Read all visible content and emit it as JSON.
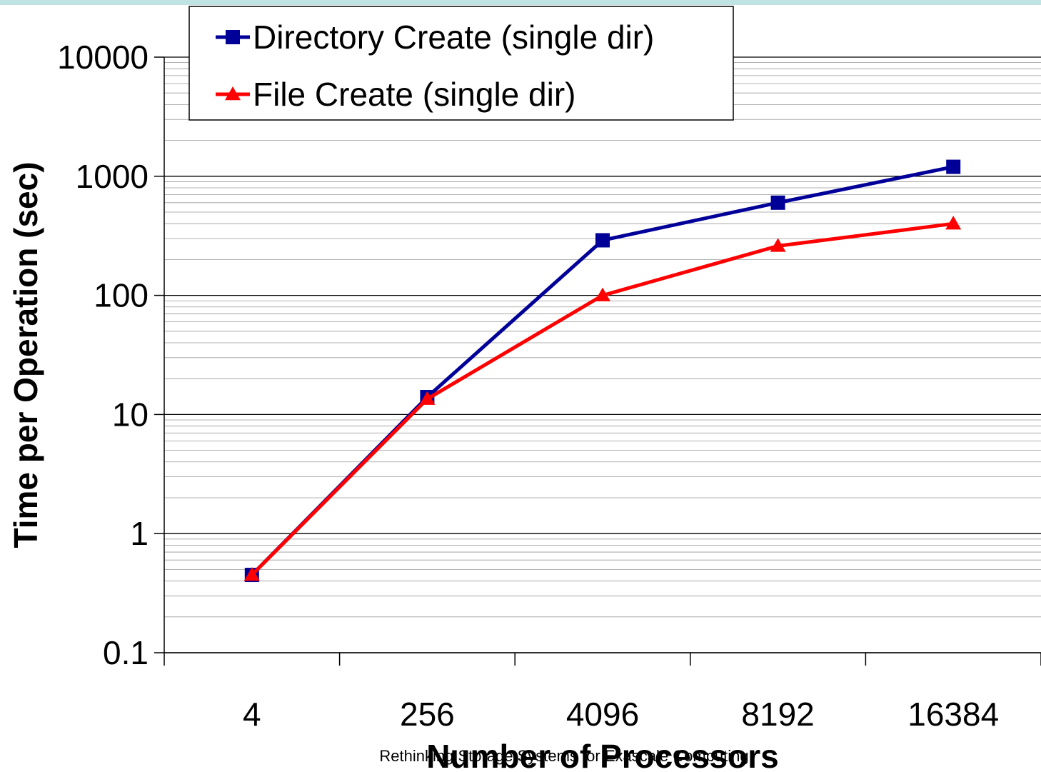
{
  "chart_data": {
    "type": "line",
    "title": "",
    "xlabel": "Number of Processors",
    "ylabel": "Time per Operation (sec)",
    "y_scale": "log",
    "ylim": [
      0.1,
      10000
    ],
    "y_ticks": [
      "0.1",
      "1",
      "10",
      "100",
      "1000",
      "10000"
    ],
    "categories": [
      "4",
      "256",
      "4096",
      "8192",
      "16384"
    ],
    "grid": "horizontal major and minor",
    "legend_position": "top-left",
    "series": [
      {
        "name": "Directory Create (single dir)",
        "color": "#000099",
        "marker": "square",
        "values": [
          0.45,
          14,
          290,
          600,
          1200
        ]
      },
      {
        "name": "File Create (single dir)",
        "color": "#ff0000",
        "marker": "triangle",
        "values": [
          0.45,
          13.5,
          100,
          260,
          400
        ]
      }
    ]
  },
  "footer": {
    "text": "Rethinking Storage Systems for Exascale Computing"
  }
}
